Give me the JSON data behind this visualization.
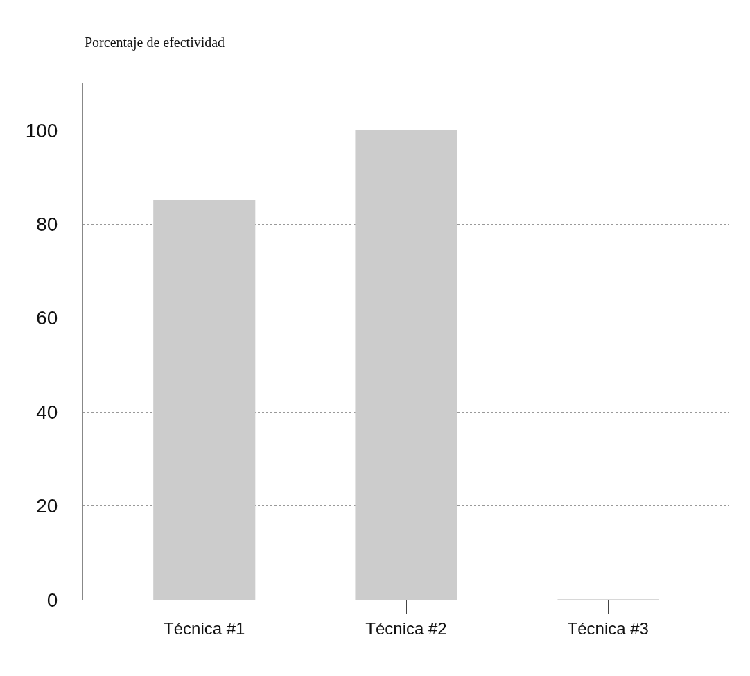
{
  "chart_data": {
    "type": "bar",
    "ylabel": "Porcentaje de efectividad",
    "categories": [
      "Técnica #1",
      "Técnica #2",
      "Técnica #3"
    ],
    "values": [
      85,
      100,
      0
    ],
    "color": "#cccccc",
    "ylim": [
      0,
      110
    ],
    "yticks": [
      0,
      20,
      40,
      60,
      80,
      100
    ],
    "grid": "y"
  }
}
